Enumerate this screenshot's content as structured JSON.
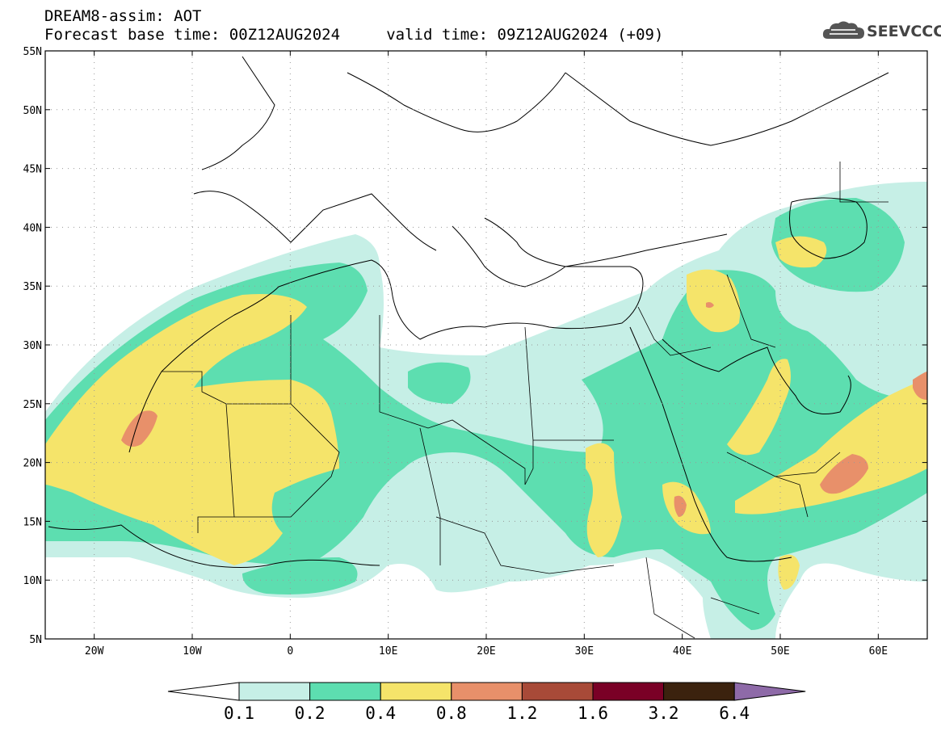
{
  "header": {
    "line1": "DREAM8-assim: AOT",
    "line2": "Forecast base time: 00Z12AUG2024     valid time: 09Z12AUG2024 (+09)"
  },
  "logo": {
    "text": "SEEVCCC",
    "icon": "cloud-icon"
  },
  "map": {
    "lon_ticks": [
      "20W",
      "10W",
      "0",
      "10E",
      "20E",
      "30E",
      "40E",
      "50E",
      "60E"
    ],
    "lat_ticks": [
      "55N",
      "50N",
      "45N",
      "40N",
      "35N",
      "30N",
      "25N",
      "20N",
      "15N",
      "10N",
      "5N"
    ],
    "lon_range": [
      -25,
      65
    ],
    "lat_range": [
      5,
      55
    ]
  },
  "colorbar": {
    "labels": [
      "0.1",
      "0.2",
      "0.4",
      "0.8",
      "1.2",
      "1.6",
      "3.2",
      "6.4"
    ],
    "colors": [
      "#ffffff",
      "#c6efe6",
      "#5ddeb0",
      "#f5e46a",
      "#e8906a",
      "#a84a38",
      "#7a0026",
      "#3b220e",
      "#8e6aa8"
    ]
  }
}
